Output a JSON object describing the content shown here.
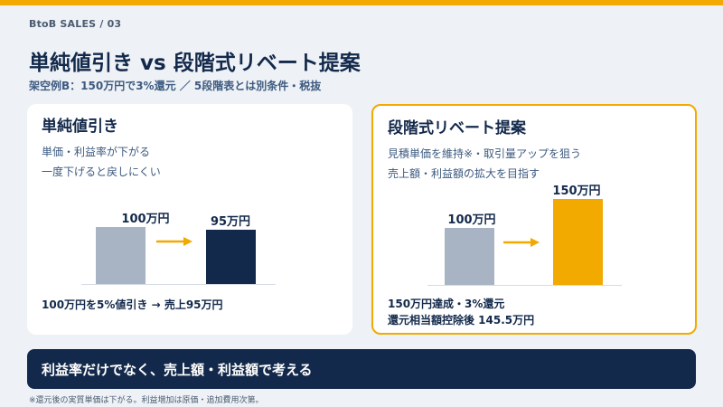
{
  "header": {
    "breadcrumb": "BtoB SALES  /  03",
    "title": "単純値引き vs 段階式リベート提案",
    "subtitle": "架空例B：150万円で3%還元 ／ 5段階表とは別条件・税抜"
  },
  "cards": {
    "left": {
      "title": "単純値引き",
      "desc_line1": "単価・利益率が下がる",
      "desc_line2": "一度下げると戻しにくい",
      "bar_before_label": "100万円",
      "bar_after_label": "95万円",
      "caption": "100万円を5%値引き → 売上95万円"
    },
    "right": {
      "title": "段階式リベート提案",
      "desc_line1": "見積単価を維持※・取引量アップを狙う",
      "desc_line2": "売上額・利益額の拡大を目指す",
      "bar_before_label": "100万円",
      "bar_after_label": "150万円",
      "caption_line1": "150万円達成・3%還元",
      "caption_line2": "還元相当額控除後 145.5万円"
    }
  },
  "chart_data": [
    {
      "type": "bar",
      "categories": [
        "100万円",
        "95万円"
      ],
      "values": [
        100,
        95
      ]
    },
    {
      "type": "bar",
      "categories": [
        "100万円",
        "150万円"
      ],
      "values": [
        100,
        150
      ]
    }
  ],
  "banner": {
    "text": "利益率だけでなく、売上額・利益額で考える"
  },
  "footnote": "※還元後の実質単価は下がる。利益増加は原価・追加費用次第。",
  "colors": {
    "accent": "#f2a900",
    "navy": "#13294b",
    "gray_bar": "#a8b4c4",
    "background": "#eef2f6"
  }
}
